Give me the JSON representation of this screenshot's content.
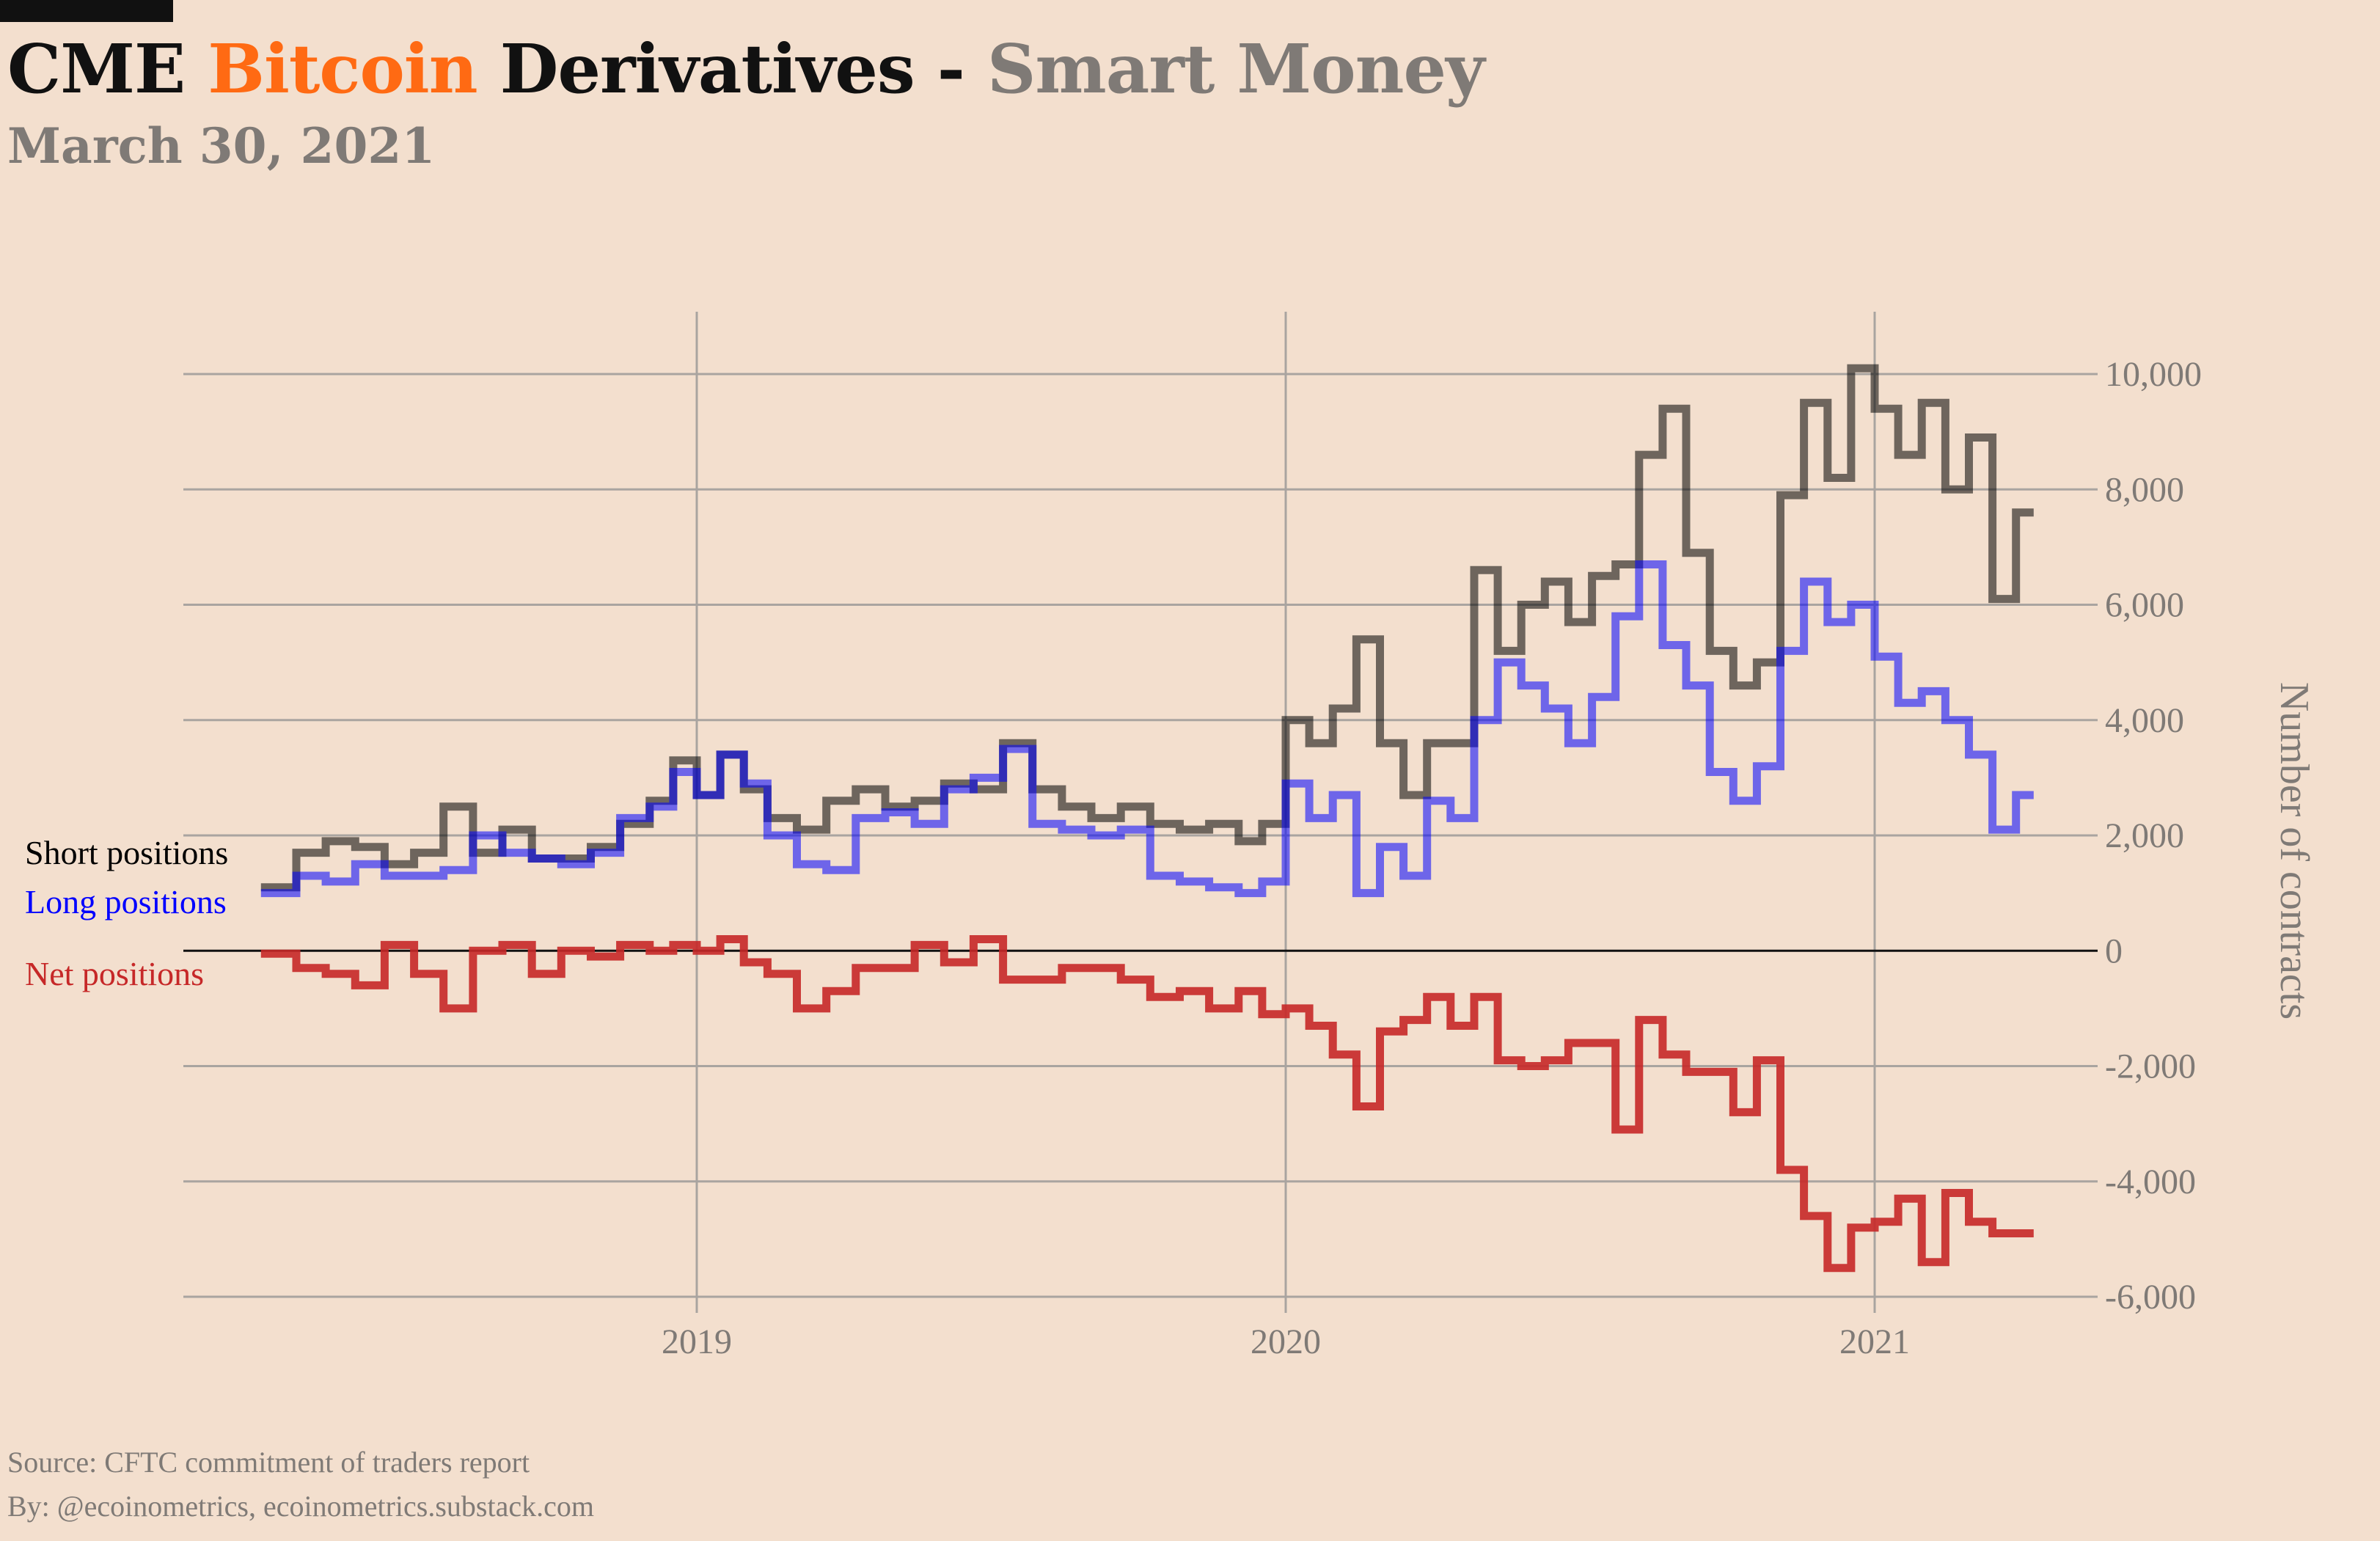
{
  "header": {
    "title_part1": "CME ",
    "title_part2": "Bitcoin",
    "title_part3": " Derivatives - ",
    "title_part4": "Smart Money",
    "subtitle": "March 30, 2021"
  },
  "footer": {
    "source": "Source: CFTC commitment of traders report",
    "by": "By: @ecoinometrics, ecoinometrics.substack.com"
  },
  "colors": {
    "background": "#f3dfce",
    "accent": "#ff6a13",
    "title": "#111111",
    "muted": "#7f7a76",
    "short": "#000000",
    "long": "#0000ff",
    "net": "#c62828",
    "grid": "#a9a4a0"
  },
  "chart_data": {
    "type": "line",
    "title": "CME Bitcoin Derivatives - Smart Money",
    "xlabel": "",
    "ylabel": "Number of contracts",
    "xlim": [
      2018.27,
      2021.28
    ],
    "ylim": [
      -6000,
      10500
    ],
    "y_ticks": [
      -6000,
      -4000,
      -2000,
      0,
      2000,
      4000,
      6000,
      8000,
      10000
    ],
    "y_tick_labels": [
      "-6,000",
      "-4,000",
      "-2,000",
      "0",
      "2,000",
      "4,000",
      "6,000",
      "8,000",
      "10,000"
    ],
    "x_ticks": [
      2019,
      2020,
      2021
    ],
    "x_tick_labels": [
      "2019",
      "2020",
      "2021"
    ],
    "grid": true,
    "legend_placement": "left, inline labels",
    "series": [
      {
        "name": "Short positions",
        "color": "#000000",
        "step": true,
        "x": [
          2018.26,
          2018.32,
          2018.37,
          2018.42,
          2018.47,
          2018.52,
          2018.57,
          2018.62,
          2018.67,
          2018.72,
          2018.77,
          2018.82,
          2018.87,
          2018.92,
          2018.96,
          2019.0,
          2019.04,
          2019.08,
          2019.12,
          2019.17,
          2019.22,
          2019.27,
          2019.32,
          2019.37,
          2019.42,
          2019.47,
          2019.52,
          2019.57,
          2019.62,
          2019.67,
          2019.72,
          2019.77,
          2019.82,
          2019.87,
          2019.92,
          2019.96,
          2020.0,
          2020.04,
          2020.08,
          2020.12,
          2020.16,
          2020.2,
          2020.24,
          2020.28,
          2020.32,
          2020.36,
          2020.4,
          2020.44,
          2020.48,
          2020.52,
          2020.56,
          2020.6,
          2020.64,
          2020.68,
          2020.72,
          2020.76,
          2020.8,
          2020.84,
          2020.88,
          2020.92,
          2020.96,
          2021.0,
          2021.04,
          2021.08,
          2021.12,
          2021.16,
          2021.2,
          2021.24
        ],
        "values": [
          1100,
          1700,
          1900,
          1800,
          1500,
          1700,
          2500,
          1700,
          2100,
          1600,
          1600,
          1800,
          2200,
          2600,
          3300,
          2700,
          3400,
          2800,
          2300,
          2100,
          2600,
          2800,
          2500,
          2600,
          2900,
          2800,
          3600,
          2800,
          2500,
          2300,
          2500,
          2200,
          2100,
          2200,
          1900,
          2200,
          4000,
          3600,
          4200,
          5400,
          3600,
          2700,
          3600,
          3600,
          6600,
          5200,
          6000,
          6400,
          5700,
          6500,
          6700,
          8600,
          9400,
          6900,
          5200,
          4600,
          5000,
          7900,
          9500,
          8200,
          10100,
          9400,
          8600,
          9500,
          8000,
          8900,
          6100,
          7600
        ]
      },
      {
        "name": "Long positions",
        "color": "#0000ff",
        "step": true,
        "x": [
          2018.26,
          2018.32,
          2018.37,
          2018.42,
          2018.47,
          2018.52,
          2018.57,
          2018.62,
          2018.67,
          2018.72,
          2018.77,
          2018.82,
          2018.87,
          2018.92,
          2018.96,
          2019.0,
          2019.04,
          2019.08,
          2019.12,
          2019.17,
          2019.22,
          2019.27,
          2019.32,
          2019.37,
          2019.42,
          2019.47,
          2019.52,
          2019.57,
          2019.62,
          2019.67,
          2019.72,
          2019.77,
          2019.82,
          2019.87,
          2019.92,
          2019.96,
          2020.0,
          2020.04,
          2020.08,
          2020.12,
          2020.16,
          2020.2,
          2020.24,
          2020.28,
          2020.32,
          2020.36,
          2020.4,
          2020.44,
          2020.48,
          2020.52,
          2020.56,
          2020.6,
          2020.64,
          2020.68,
          2020.72,
          2020.76,
          2020.8,
          2020.84,
          2020.88,
          2020.92,
          2020.96,
          2021.0,
          2021.04,
          2021.08,
          2021.12,
          2021.16,
          2021.2,
          2021.24
        ],
        "values": [
          1000,
          1300,
          1200,
          1500,
          1300,
          1300,
          1400,
          2000,
          1700,
          1600,
          1500,
          1700,
          2300,
          2500,
          3100,
          2700,
          3400,
          2900,
          2000,
          1500,
          1400,
          2300,
          2400,
          2200,
          2800,
          3000,
          3500,
          2200,
          2100,
          2000,
          2100,
          1300,
          1200,
          1100,
          1000,
          1200,
          2900,
          2300,
          2700,
          1000,
          1800,
          1300,
          2600,
          2300,
          4000,
          5000,
          4600,
          4200,
          3600,
          4400,
          5800,
          6700,
          5300,
          4600,
          3100,
          2600,
          3200,
          5200,
          6400,
          5700,
          6000,
          5100,
          4300,
          4500,
          4000,
          3400,
          2100,
          2700
        ]
      },
      {
        "name": "Net positions",
        "color": "#c62828",
        "step": true,
        "x": [
          2018.26,
          2018.32,
          2018.37,
          2018.42,
          2018.47,
          2018.52,
          2018.57,
          2018.62,
          2018.67,
          2018.72,
          2018.77,
          2018.82,
          2018.87,
          2018.92,
          2018.96,
          2019.0,
          2019.04,
          2019.08,
          2019.12,
          2019.17,
          2019.22,
          2019.27,
          2019.32,
          2019.37,
          2019.42,
          2019.47,
          2019.52,
          2019.57,
          2019.62,
          2019.67,
          2019.72,
          2019.77,
          2019.82,
          2019.87,
          2019.92,
          2019.96,
          2020.0,
          2020.04,
          2020.08,
          2020.12,
          2020.16,
          2020.2,
          2020.24,
          2020.28,
          2020.32,
          2020.36,
          2020.4,
          2020.44,
          2020.48,
          2020.52,
          2020.56,
          2020.6,
          2020.64,
          2020.68,
          2020.72,
          2020.76,
          2020.8,
          2020.84,
          2020.88,
          2020.92,
          2020.96,
          2021.0,
          2021.04,
          2021.08,
          2021.12,
          2021.16,
          2021.2,
          2021.24
        ],
        "values": [
          -50,
          -300,
          -400,
          -600,
          100,
          -400,
          -1000,
          0,
          100,
          -400,
          0,
          -100,
          100,
          0,
          100,
          0,
          200,
          -200,
          -400,
          -1000,
          -700,
          -300,
          -300,
          100,
          -200,
          200,
          -500,
          -500,
          -300,
          -300,
          -500,
          -800,
          -700,
          -1000,
          -700,
          -1100,
          -1000,
          -1300,
          -1800,
          -2700,
          -1400,
          -1200,
          -800,
          -1300,
          -800,
          -1900,
          -2000,
          -1900,
          -1600,
          -1600,
          -3100,
          -1200,
          -1800,
          -2100,
          -2100,
          -2800,
          -1900,
          -3800,
          -4600,
          -5500,
          -4800,
          -4700,
          -4300,
          -5400,
          -4200,
          -4700,
          -4900,
          -4900
        ]
      }
    ],
    "legend": [
      {
        "label": "Short positions",
        "color": "#000000"
      },
      {
        "label": "Long positions",
        "color": "#0000ff"
      },
      {
        "label": "Net positions",
        "color": "#c62828"
      }
    ]
  }
}
